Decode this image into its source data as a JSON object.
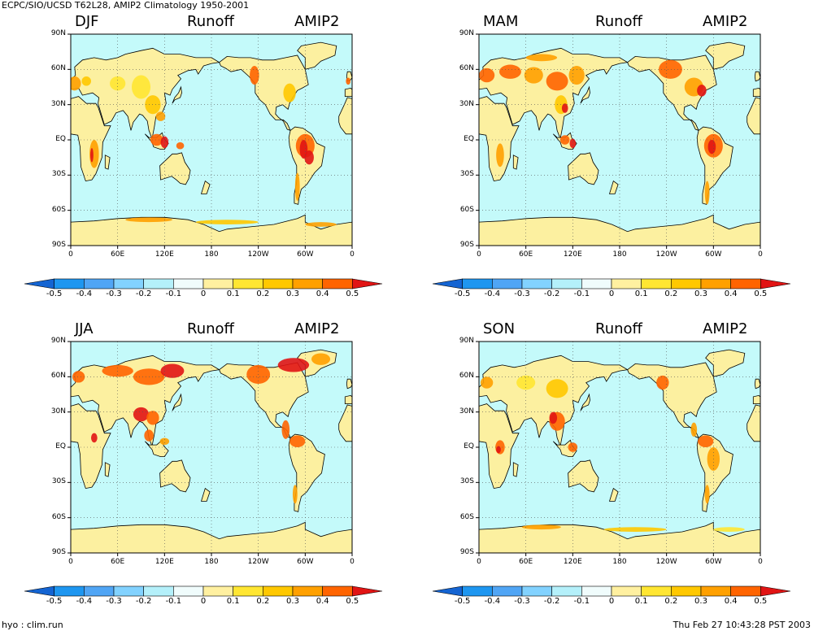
{
  "header": {
    "title": "ECPC/SIO/UCSD T62L28, AMIP2 Climatology 1950-2001"
  },
  "footer": {
    "left": "hyo : clim.run",
    "right": "Thu Feb 27 10:43:28 PST 2003"
  },
  "map_style": {
    "ocean": "#c4fafa",
    "land": "#fcf0a0",
    "coast": "#000000"
  },
  "y_ticks": [
    "90N",
    "60N",
    "30N",
    "EQ",
    "30S",
    "60S",
    "90S"
  ],
  "x_ticks": [
    "0",
    "60E",
    "120E",
    "180",
    "120W",
    "60W",
    "0"
  ],
  "colorbar": {
    "labels": [
      "-0.5",
      "-0.4",
      "-0.3",
      "-0.2",
      "-0.1",
      "0",
      "0.1",
      "0.2",
      "0.3",
      "0.4",
      "0.5"
    ],
    "colors": [
      "#1464d2",
      "#1e96f0",
      "#50a5f5",
      "#82d2ff",
      "#b4f0fa",
      "#f0fcfc",
      "#fff0a0",
      "#ffe632",
      "#ffc800",
      "#ffa000",
      "#ff6400",
      "#e11414"
    ]
  },
  "panels": [
    {
      "season": "DJF",
      "variable": "Runoff",
      "model": "AMIP2"
    },
    {
      "season": "MAM",
      "variable": "Runoff",
      "model": "AMIP2"
    },
    {
      "season": "JJA",
      "variable": "Runoff",
      "model": "AMIP2"
    },
    {
      "season": "SON",
      "variable": "Runoff",
      "model": "AMIP2"
    }
  ]
}
